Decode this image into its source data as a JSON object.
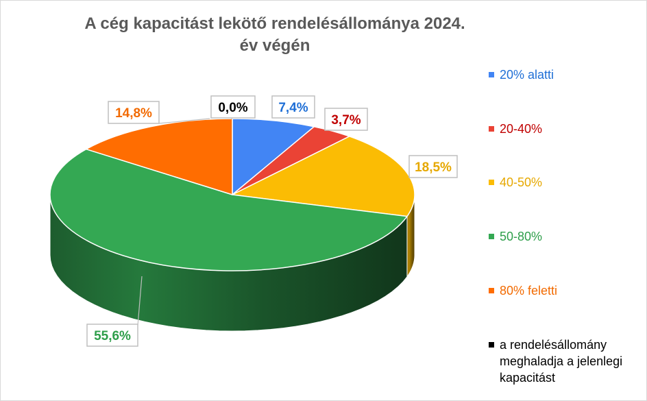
{
  "chart_data": {
    "type": "pie",
    "title": "A cég kapacitást lekötő rendelésállománya 2024. év végén",
    "legend_position": "right",
    "three_d": true,
    "slices": [
      {
        "label": "20% alatti",
        "value": 7.4,
        "value_label": "7,4%",
        "color": "#4285F4",
        "label_color": "#1f6fd6"
      },
      {
        "label": "20-40%",
        "value": 3.7,
        "value_label": "3,7%",
        "color": "#EA4335",
        "label_color": "#c00000"
      },
      {
        "label": "40-50%",
        "value": 18.5,
        "value_label": "18,5%",
        "color": "#FBBC04",
        "label_color": "#e6a800"
      },
      {
        "label": "50-80%",
        "value": 55.6,
        "value_label": "55,6%",
        "color": "#34A853",
        "label_color": "#2e9e4a"
      },
      {
        "label": "80% feletti",
        "value": 14.8,
        "value_label": "14,8%",
        "color": "#FF6D01",
        "label_color": "#f26a00"
      },
      {
        "label": "a rendelésállomány meghaladja a jelenlegi kapacitást",
        "value": 0.0,
        "value_label": "0,0%",
        "color": "#000000",
        "label_color": "#000000"
      }
    ]
  }
}
